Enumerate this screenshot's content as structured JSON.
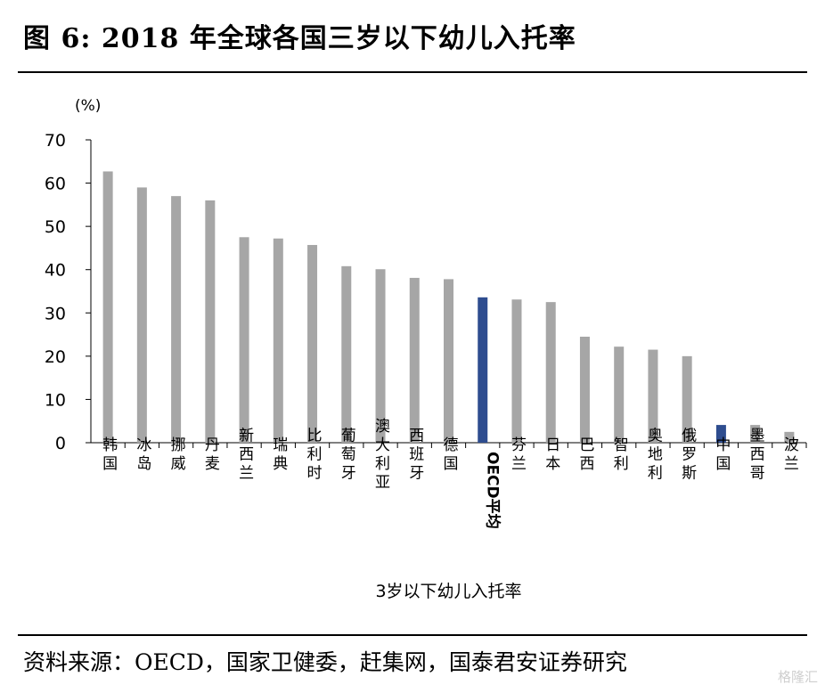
{
  "header": {
    "title": "图 6: 2018 年全球各国三岁以下幼儿入托率"
  },
  "footer": {
    "source": "资料来源：OECD，国家卫健委，赶集网，国泰君安证券研究"
  },
  "watermark": "格隆汇",
  "colors": {
    "default_bar": "#a6a6a6",
    "highlight_bar": "#2e4d8f"
  },
  "chart_data": {
    "type": "bar",
    "title": "",
    "xlabel": "3岁以下幼儿入托率",
    "ylabel": "(%)",
    "ylim": [
      0,
      70
    ],
    "yticks": [
      0,
      10,
      20,
      30,
      40,
      50,
      60,
      70
    ],
    "grid": false,
    "legend": "none",
    "categories": [
      "韩国",
      "冰岛",
      "挪威",
      "丹麦",
      "新西兰",
      "瑞典",
      "比利时",
      "葡萄牙",
      "澳大利亚",
      "西班牙",
      "德国",
      "OECD平均",
      "芬兰",
      "日本",
      "巴西",
      "智利",
      "奥地利",
      "俄罗斯",
      "中国",
      "墨西哥",
      "波兰"
    ],
    "values": [
      62.7,
      59,
      57,
      56,
      47.5,
      47.2,
      45.7,
      40.8,
      40.1,
      38.1,
      37.8,
      33.6,
      33.1,
      32.5,
      24.5,
      22.2,
      21.5,
      20,
      4.1,
      4.1,
      2.5
    ],
    "highlighted": [
      "OECD平均",
      "中国"
    ]
  }
}
